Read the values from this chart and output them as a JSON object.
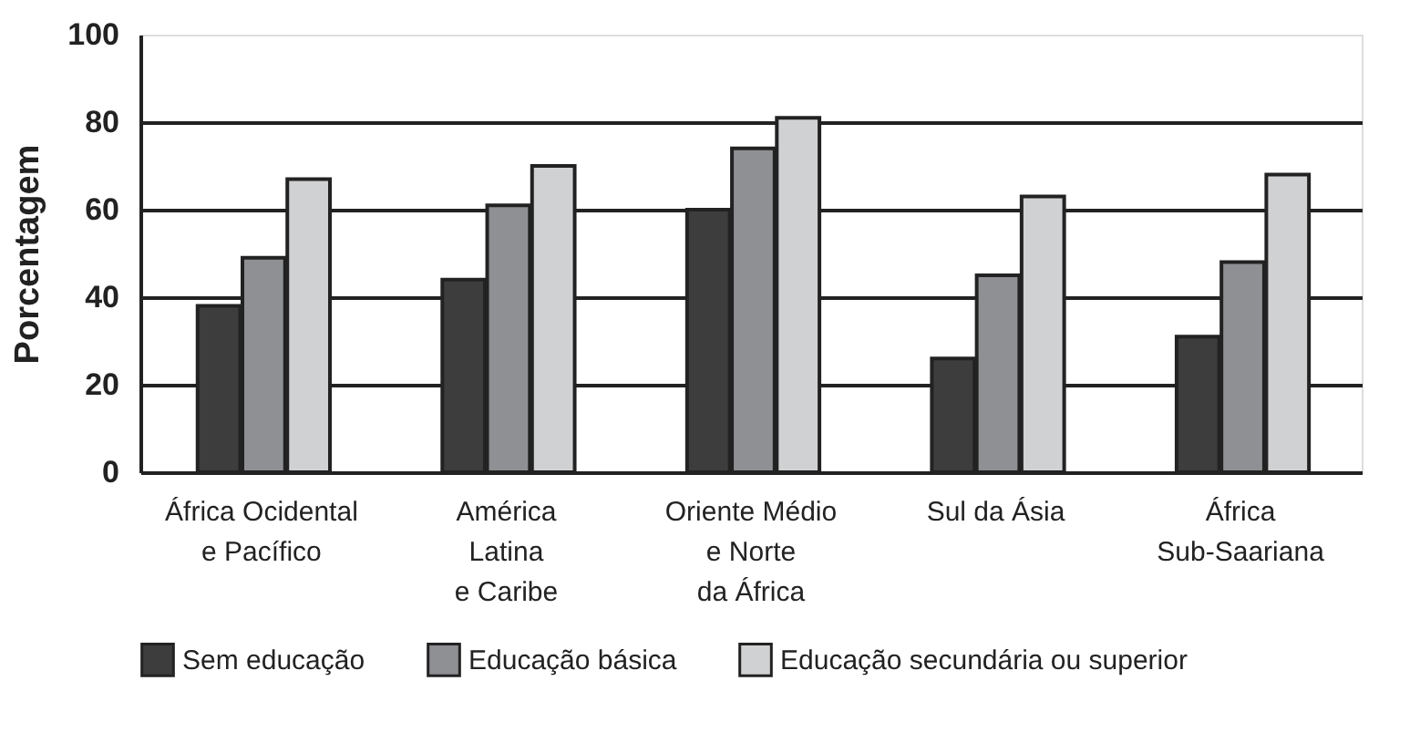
{
  "chart_data": {
    "type": "bar",
    "ylabel": "Porcentagem",
    "categories": [
      "África Ocidental\ne Pacífico",
      "América\nLatina\ne Caribe",
      "Oriente Médio\ne Norte\nda África",
      "Sul da Ásia",
      "África\nSub-Saariana"
    ],
    "series": [
      {
        "name": "Sem educação",
        "color": "#3d3d3d",
        "values": [
          38,
          44,
          60,
          26,
          31
        ]
      },
      {
        "name": "Educação básica",
        "color": "#8e9093",
        "values": [
          49,
          61,
          74,
          45,
          48
        ]
      },
      {
        "name": "Educação secundária ou superior",
        "color": "#d0d1d3",
        "values": [
          67,
          70,
          81,
          63,
          68
        ]
      }
    ],
    "ylim": [
      0,
      100
    ],
    "yticks": [
      0,
      20,
      40,
      60,
      80,
      100
    ],
    "grid": "y",
    "legend": "bottom"
  }
}
